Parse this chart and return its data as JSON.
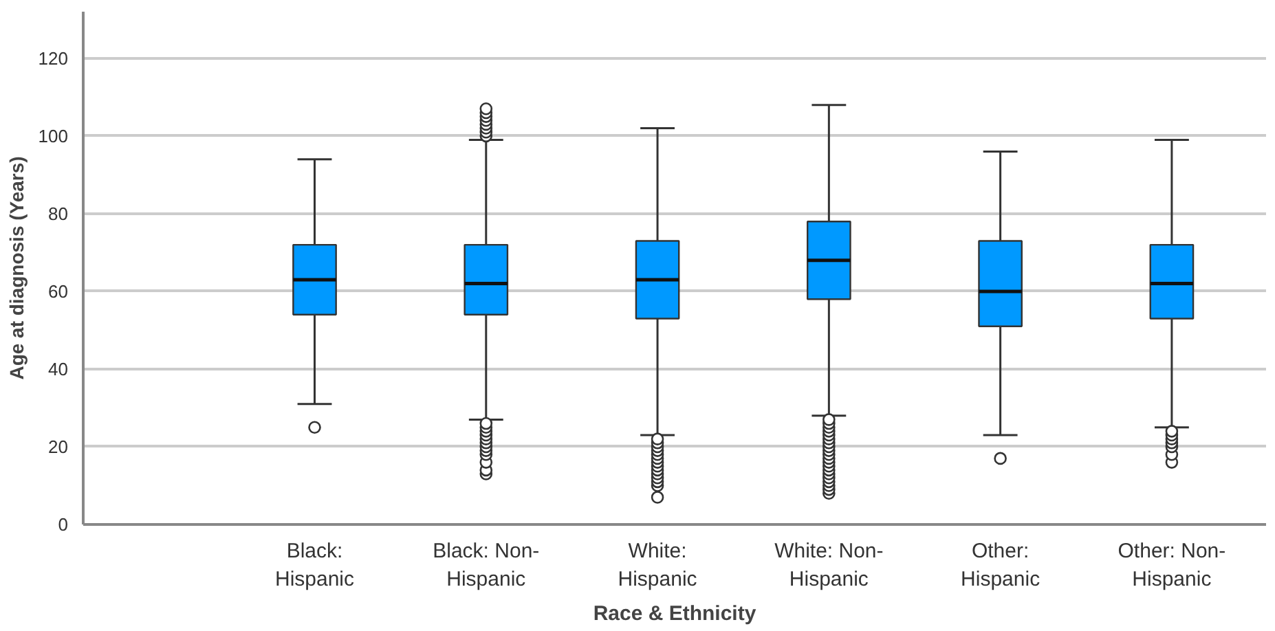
{
  "chart_data": {
    "type": "box",
    "xlabel": "Race & Ethnicity",
    "ylabel": "Age at diagnosis (Years)",
    "categories": [
      "Black: Hispanic",
      "Black: Non-Hispanic",
      "White: Hispanic",
      "White: Non-Hispanic",
      "Other: Hispanic",
      "Other: Non-Hispanic"
    ],
    "color": "#0099ff",
    "boxes": [
      {
        "low": 31,
        "q1": 54,
        "median": 63,
        "q3": 72,
        "high": 94,
        "outliers": [
          25
        ]
      },
      {
        "low": 27,
        "q1": 54,
        "median": 62,
        "q3": 72,
        "high": 99,
        "outliers": [
          13,
          14,
          16,
          18,
          19,
          20,
          21,
          22,
          23,
          24,
          25,
          26,
          100,
          101,
          102,
          103,
          104,
          105,
          106,
          107
        ]
      },
      {
        "low": 23,
        "q1": 53,
        "median": 63,
        "q3": 73,
        "high": 102,
        "outliers": [
          7,
          10,
          11,
          12,
          13,
          14,
          15,
          16,
          17,
          18,
          19,
          20,
          21,
          22
        ]
      },
      {
        "low": 28,
        "q1": 58,
        "median": 68,
        "q3": 78,
        "high": 108,
        "outliers": [
          8,
          9,
          10,
          11,
          12,
          13,
          14,
          15,
          16,
          17,
          18,
          19,
          20,
          21,
          22,
          23,
          24,
          25,
          26,
          27
        ]
      },
      {
        "low": 23,
        "q1": 51,
        "median": 60,
        "q3": 73,
        "high": 96,
        "outliers": [
          17
        ]
      },
      {
        "low": 25,
        "q1": 53,
        "median": 62,
        "q3": 72,
        "high": 99,
        "outliers": [
          16,
          18,
          20,
          21,
          22,
          23,
          24
        ]
      }
    ],
    "ylim": [
      0,
      132
    ],
    "yticks": [
      0,
      20,
      40,
      60,
      80,
      100,
      120
    ],
    "grid": "y",
    "marker": "circle"
  }
}
